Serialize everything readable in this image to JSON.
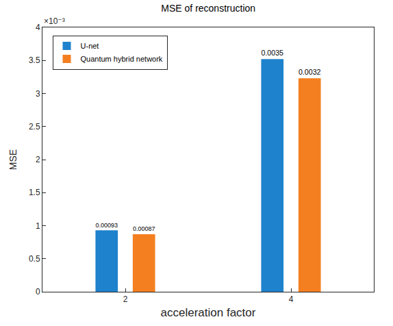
{
  "chart_data": {
    "type": "bar",
    "title": "MSE of reconstruction",
    "x_label": "acceleration factor",
    "y_label": "MSE",
    "categories": [
      "2",
      "4"
    ],
    "series": [
      {
        "name": "U-net",
        "color": "#1f82cc",
        "values": [
          0.00093,
          0.00352
        ],
        "value_labels": [
          "0.00093",
          "0.0035"
        ]
      },
      {
        "name": "Quantum hybrid network",
        "color": "#f47f20",
        "values": [
          0.00087,
          0.00323
        ],
        "value_labels": [
          "0.00087",
          "0.0032"
        ]
      }
    ],
    "ylim": [
      0,
      0.004
    ],
    "yticks": [
      0,
      {
        "value": 0.0005,
        "label": "0.5"
      },
      {
        "value": 0.001,
        "label": "1"
      },
      {
        "value": 0.0015,
        "label": "1.5"
      },
      {
        "value": 0.002,
        "label": "2"
      },
      {
        "value": 0.0025,
        "label": "2.5"
      },
      {
        "value": 0.003,
        "label": "3"
      },
      {
        "value": 0.0035,
        "label": "3.5"
      },
      {
        "value": 0.004,
        "label": "4"
      }
    ],
    "annotations": [
      {
        "text": "×10⁻³"
      }
    ],
    "grid": false,
    "legend": "upper left",
    "data_labels": true
  }
}
